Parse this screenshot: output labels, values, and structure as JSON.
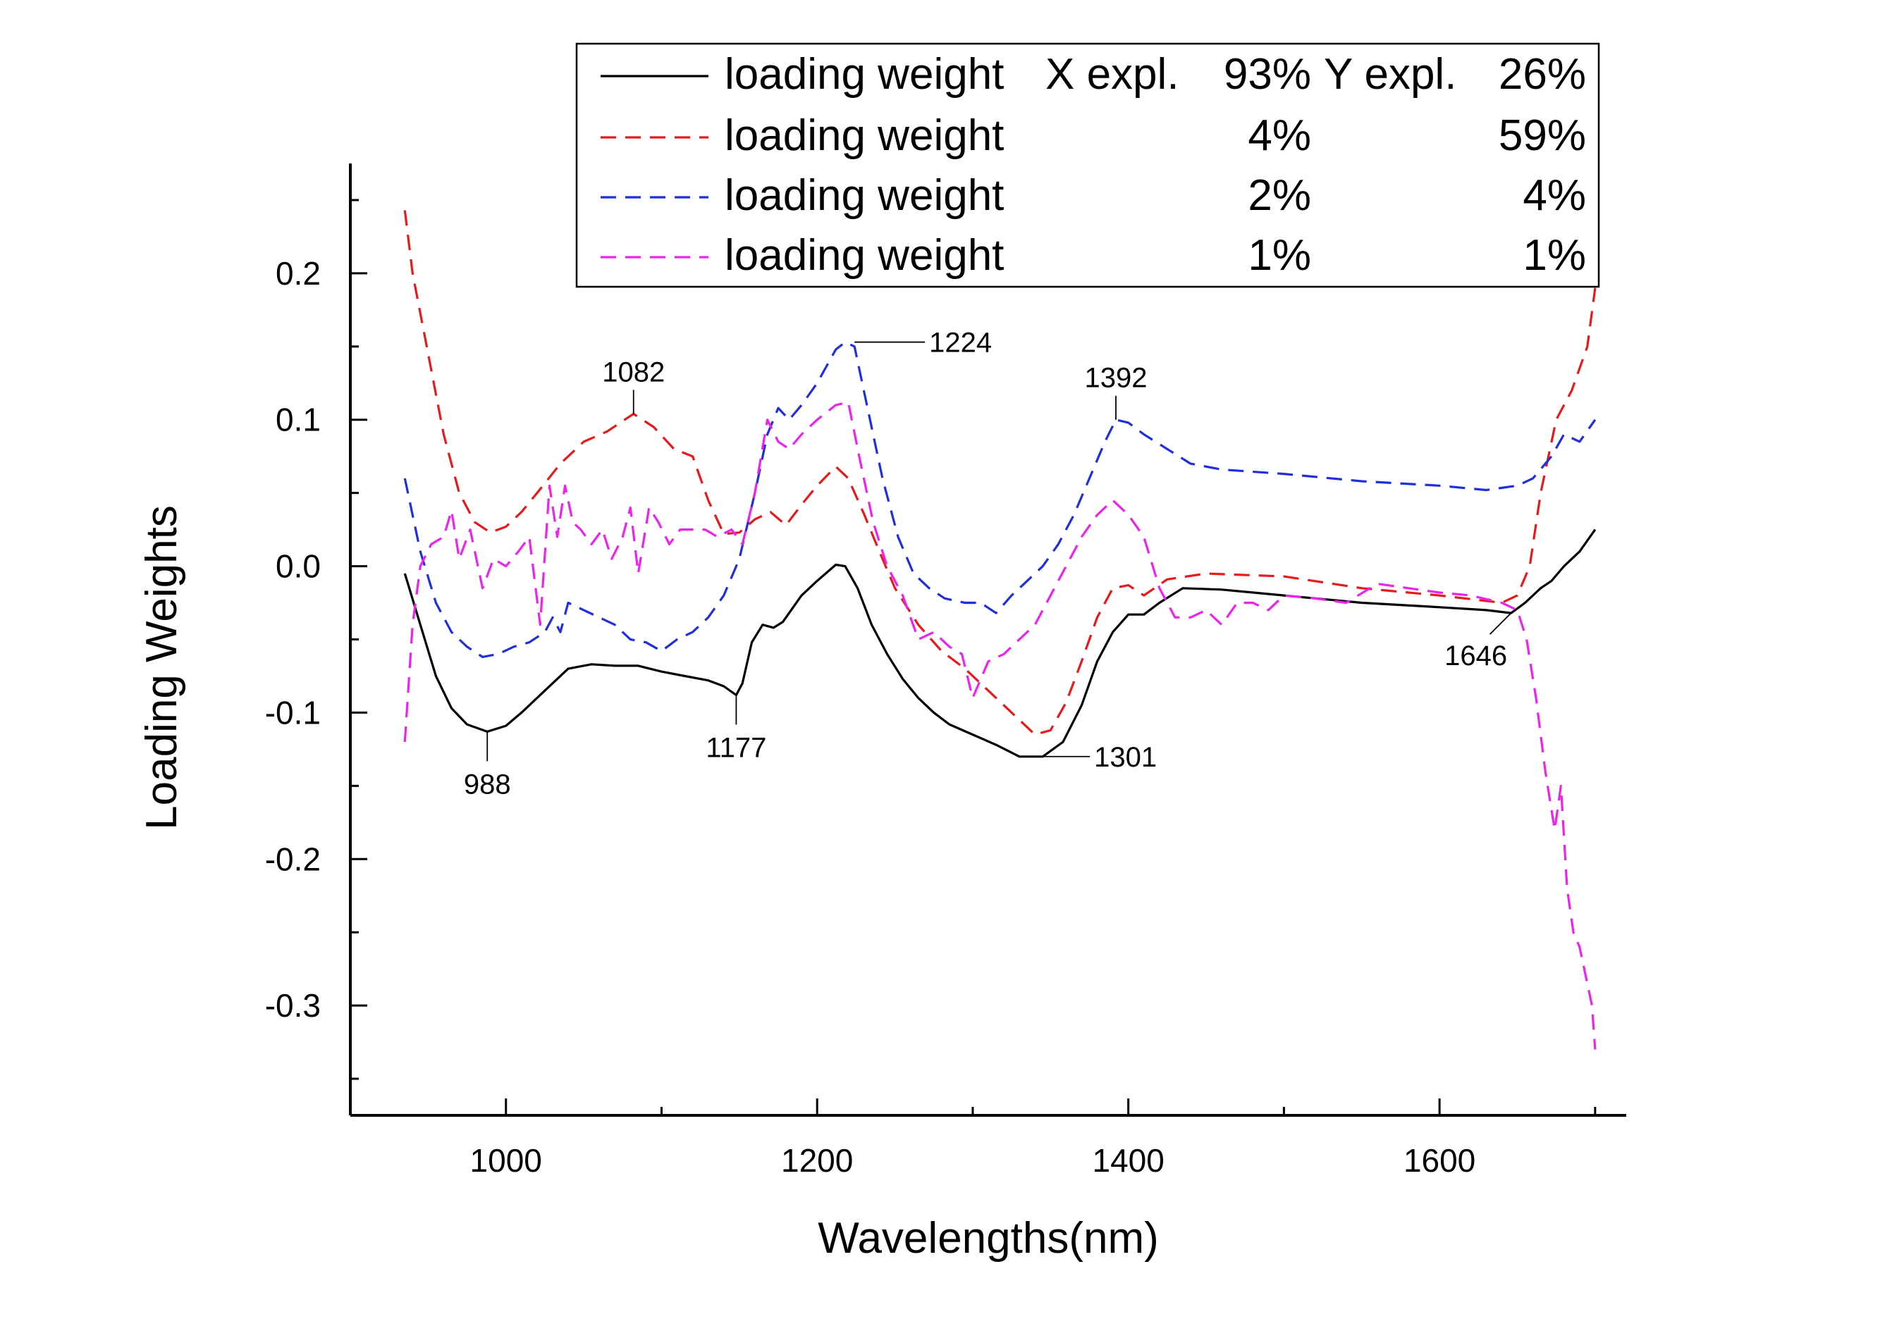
{
  "chart_data": {
    "type": "line",
    "xlabel": "Wavelengths(nm)",
    "ylabel": "Loading Weights",
    "xlim": [
      900,
      1720
    ],
    "ylim": [
      -0.375,
      0.275
    ],
    "xticks": [
      {
        "value": 1000,
        "label": "1000"
      },
      {
        "value": 1200,
        "label": "1200"
      },
      {
        "value": 1400,
        "label": "1400"
      },
      {
        "value": 1600,
        "label": "1600"
      }
    ],
    "yticks": [
      {
        "value": 0.2,
        "label": "0.2"
      },
      {
        "value": 0.1,
        "label": "0.1"
      },
      {
        "value": 0.0,
        "label": "0.0"
      },
      {
        "value": -0.1,
        "label": "-0.1"
      },
      {
        "value": -0.2,
        "label": "-0.2"
      },
      {
        "value": -0.3,
        "label": "-0.3"
      }
    ],
    "grid": false,
    "legend_position": "top-right",
    "legend_header": {
      "name": "loading weight",
      "x_expl_label": "X expl.",
      "x_expl": "93%",
      "y_expl_label": "Y expl.",
      "y_expl": "26%"
    },
    "series": [
      {
        "name": "loading weight",
        "x_expl": "93%",
        "y_expl": "26%",
        "color": "#000000",
        "dash": "solid",
        "x": [
          935,
          945,
          955,
          965,
          975,
          988,
          1000,
          1010,
          1025,
          1040,
          1055,
          1070,
          1085,
          1100,
          1115,
          1130,
          1140,
          1148,
          1152,
          1158,
          1165,
          1172,
          1178,
          1190,
          1200,
          1212,
          1218,
          1226,
          1235,
          1245,
          1255,
          1265,
          1275,
          1285,
          1300,
          1315,
          1330,
          1345,
          1358,
          1370,
          1380,
          1390,
          1400,
          1410,
          1420,
          1435,
          1460,
          1500,
          1550,
          1600,
          1630,
          1646,
          1655,
          1665,
          1672,
          1680,
          1690,
          1700
        ],
        "values": [
          -0.005,
          -0.04,
          -0.075,
          -0.097,
          -0.108,
          -0.113,
          -0.109,
          -0.1,
          -0.085,
          -0.07,
          -0.067,
          -0.068,
          -0.068,
          -0.072,
          -0.075,
          -0.078,
          -0.082,
          -0.088,
          -0.08,
          -0.052,
          -0.04,
          -0.042,
          -0.038,
          -0.02,
          -0.01,
          0.001,
          0.0,
          -0.015,
          -0.04,
          -0.06,
          -0.077,
          -0.09,
          -0.1,
          -0.108,
          -0.115,
          -0.122,
          -0.13,
          -0.13,
          -0.12,
          -0.095,
          -0.065,
          -0.045,
          -0.033,
          -0.033,
          -0.025,
          -0.015,
          -0.016,
          -0.02,
          -0.025,
          -0.028,
          -0.03,
          -0.032,
          -0.025,
          -0.015,
          -0.01,
          0.0,
          0.01,
          0.025
        ]
      },
      {
        "name": "loading weight",
        "x_expl": "4%",
        "y_expl": "59%",
        "color": "#e8191b",
        "dash": "dashed",
        "x": [
          935,
          940,
          950,
          960,
          970,
          980,
          990,
          1000,
          1010,
          1020,
          1035,
          1050,
          1065,
          1082,
          1095,
          1108,
          1120,
          1130,
          1140,
          1150,
          1160,
          1170,
          1180,
          1190,
          1200,
          1212,
          1220,
          1230,
          1240,
          1250,
          1265,
          1280,
          1295,
          1310,
          1325,
          1340,
          1350,
          1360,
          1370,
          1380,
          1390,
          1400,
          1410,
          1425,
          1450,
          1500,
          1550,
          1600,
          1640,
          1650,
          1658,
          1665,
          1675,
          1685,
          1695,
          1700
        ],
        "values": [
          0.243,
          0.2,
          0.145,
          0.09,
          0.05,
          0.03,
          0.023,
          0.027,
          0.037,
          0.05,
          0.07,
          0.085,
          0.092,
          0.104,
          0.095,
          0.08,
          0.075,
          0.045,
          0.022,
          0.023,
          0.032,
          0.037,
          0.028,
          0.042,
          0.055,
          0.068,
          0.06,
          0.036,
          0.01,
          -0.015,
          -0.04,
          -0.058,
          -0.07,
          -0.085,
          -0.1,
          -0.115,
          -0.112,
          -0.093,
          -0.065,
          -0.035,
          -0.015,
          -0.013,
          -0.02,
          -0.009,
          -0.005,
          -0.007,
          -0.015,
          -0.02,
          -0.025,
          -0.02,
          0.0,
          0.05,
          0.1,
          0.12,
          0.15,
          0.19
        ]
      },
      {
        "name": "loading weight",
        "x_expl": "2%",
        "y_expl": "4%",
        "color": "#1f2fe0",
        "dash": "dashed",
        "x": [
          935,
          945,
          955,
          965,
          975,
          985,
          995,
          1005,
          1015,
          1025,
          1030,
          1035,
          1040,
          1050,
          1060,
          1070,
          1080,
          1090,
          1100,
          1110,
          1120,
          1130,
          1140,
          1150,
          1160,
          1168,
          1175,
          1182,
          1190,
          1200,
          1212,
          1218,
          1224,
          1232,
          1242,
          1252,
          1262,
          1272,
          1282,
          1295,
          1305,
          1315,
          1325,
          1335,
          1345,
          1355,
          1365,
          1375,
          1385,
          1392,
          1400,
          1410,
          1425,
          1440,
          1460,
          1500,
          1550,
          1600,
          1630,
          1650,
          1660,
          1672,
          1680,
          1690,
          1700
        ],
        "values": [
          0.06,
          0.01,
          -0.025,
          -0.045,
          -0.055,
          -0.062,
          -0.06,
          -0.055,
          -0.052,
          -0.045,
          -0.035,
          -0.045,
          -0.025,
          -0.03,
          -0.035,
          -0.04,
          -0.05,
          -0.052,
          -0.058,
          -0.05,
          -0.045,
          -0.035,
          -0.02,
          0.005,
          0.05,
          0.09,
          0.108,
          0.1,
          0.11,
          0.125,
          0.148,
          0.153,
          0.15,
          0.11,
          0.06,
          0.02,
          -0.005,
          -0.015,
          -0.022,
          -0.025,
          -0.025,
          -0.032,
          -0.02,
          -0.01,
          0.0,
          0.015,
          0.035,
          0.06,
          0.085,
          0.1,
          0.098,
          0.09,
          0.08,
          0.07,
          0.066,
          0.063,
          0.058,
          0.055,
          0.052,
          0.055,
          0.06,
          0.075,
          0.09,
          0.085,
          0.1
        ]
      },
      {
        "name": "loading weight",
        "x_expl": "1%",
        "y_expl": "1%",
        "color": "#ee22ee",
        "dash": "dashed",
        "x": [
          935,
          940,
          945,
          952,
          960,
          965,
          970,
          977,
          985,
          992,
          1000,
          1008,
          1015,
          1022,
          1028,
          1033,
          1038,
          1043,
          1048,
          1055,
          1062,
          1068,
          1075,
          1080,
          1085,
          1092,
          1098,
          1105,
          1112,
          1120,
          1128,
          1136,
          1145,
          1152,
          1160,
          1168,
          1175,
          1182,
          1190,
          1200,
          1212,
          1220,
          1228,
          1236,
          1245,
          1255,
          1265,
          1275,
          1285,
          1293,
          1300,
          1310,
          1320,
          1330,
          1340,
          1350,
          1360,
          1370,
          1380,
          1390,
          1400,
          1410,
          1420,
          1430,
          1440,
          1450,
          1460,
          1470,
          1480,
          1490,
          1500,
          1520,
          1540,
          1560,
          1580,
          1600,
          1620,
          1640,
          1650,
          1656,
          1662,
          1668,
          1674,
          1678,
          1682,
          1686,
          1690,
          1694,
          1698,
          1700
        ],
        "values": [
          -0.12,
          -0.04,
          0.0,
          0.015,
          0.02,
          0.038,
          0.005,
          0.025,
          -0.015,
          0.005,
          0.0,
          0.01,
          0.02,
          -0.04,
          0.055,
          0.02,
          0.055,
          0.03,
          0.025,
          0.015,
          0.025,
          0.005,
          0.02,
          0.04,
          -0.005,
          0.04,
          0.03,
          0.015,
          0.025,
          0.025,
          0.025,
          0.02,
          0.025,
          0.015,
          0.05,
          0.1,
          0.085,
          0.08,
          0.09,
          0.1,
          0.11,
          0.112,
          0.07,
          0.03,
          0.0,
          -0.02,
          -0.05,
          -0.045,
          -0.055,
          -0.06,
          -0.09,
          -0.065,
          -0.06,
          -0.05,
          -0.04,
          -0.02,
          0.0,
          0.02,
          0.035,
          0.045,
          0.035,
          0.02,
          -0.015,
          -0.035,
          -0.035,
          -0.03,
          -0.04,
          -0.025,
          -0.025,
          -0.03,
          -0.02,
          -0.022,
          -0.025,
          -0.012,
          -0.015,
          -0.018,
          -0.02,
          -0.025,
          -0.03,
          -0.05,
          -0.09,
          -0.14,
          -0.18,
          -0.15,
          -0.22,
          -0.25,
          -0.26,
          -0.28,
          -0.3,
          -0.33
        ]
      }
    ],
    "annotations": [
      {
        "label": "988",
        "x": 988,
        "y": -0.113,
        "side": "below"
      },
      {
        "label": "1082",
        "x": 1082,
        "y": 0.104,
        "side": "above"
      },
      {
        "label": "1177",
        "x": 1148,
        "y": -0.088,
        "side": "below"
      },
      {
        "label": "1224",
        "x": 1224,
        "y": 0.153,
        "side": "right"
      },
      {
        "label": "1301",
        "x": 1330,
        "y": -0.13,
        "side": "right"
      },
      {
        "label": "1392",
        "x": 1392,
        "y": 0.1,
        "side": "above"
      },
      {
        "label": "1646",
        "x": 1646,
        "y": -0.032,
        "side": "below-left"
      }
    ]
  }
}
